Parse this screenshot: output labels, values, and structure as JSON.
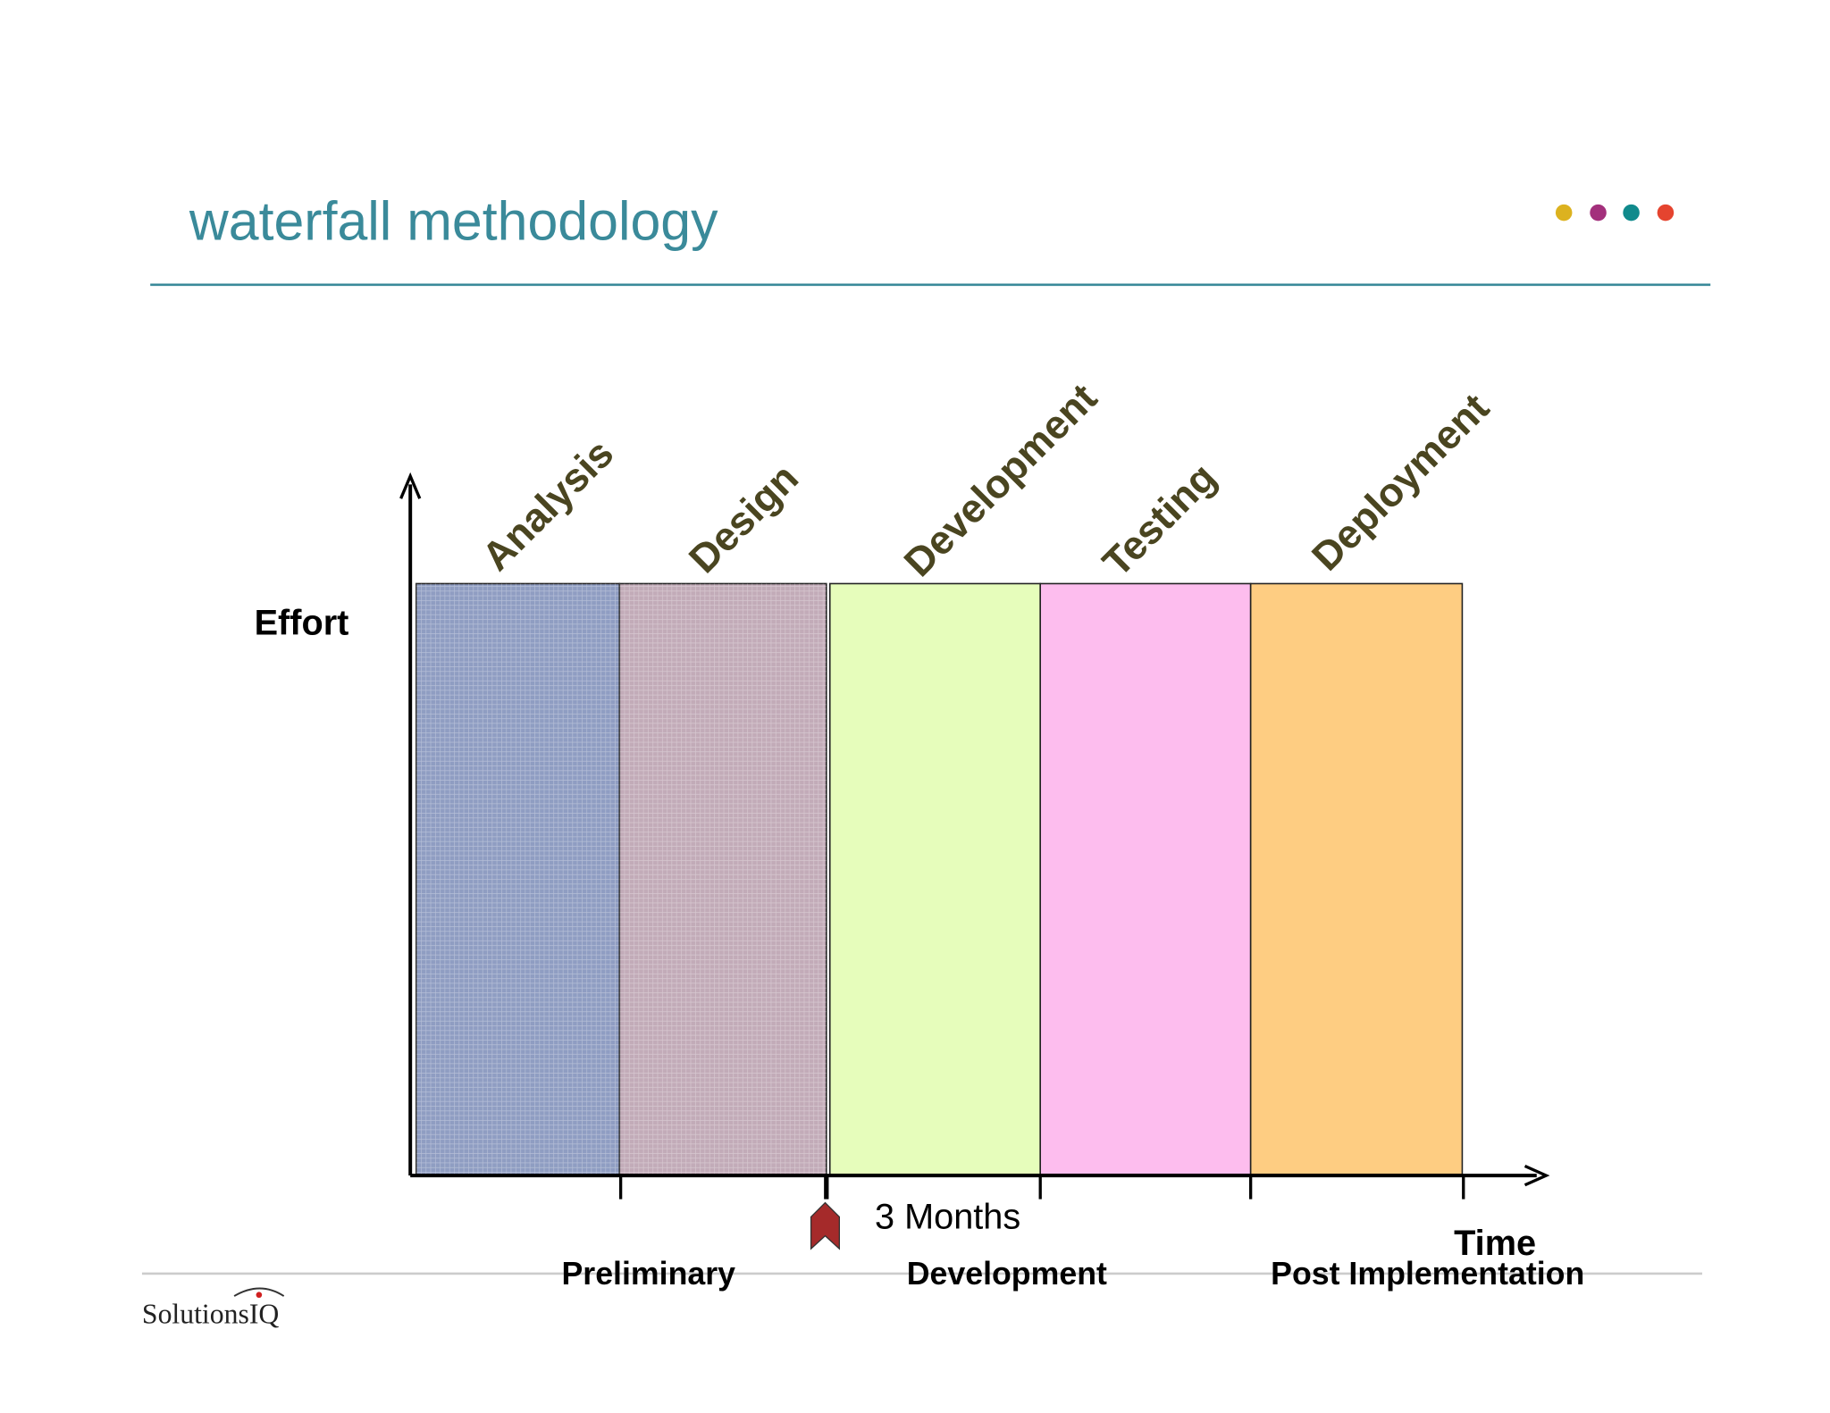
{
  "header": {
    "title": "waterfall methodology"
  },
  "diagram": {
    "phases": [
      "Analysis",
      "Design",
      "Development",
      "Testing",
      "Deployment"
    ],
    "y_axis_label": "Effort",
    "x_axis_label": "Time",
    "marker_label": "3 Months",
    "stages": [
      "Preliminary",
      "Development",
      "Post Implementation"
    ]
  },
  "footer": {
    "logo": "SolutionsIQ"
  }
}
